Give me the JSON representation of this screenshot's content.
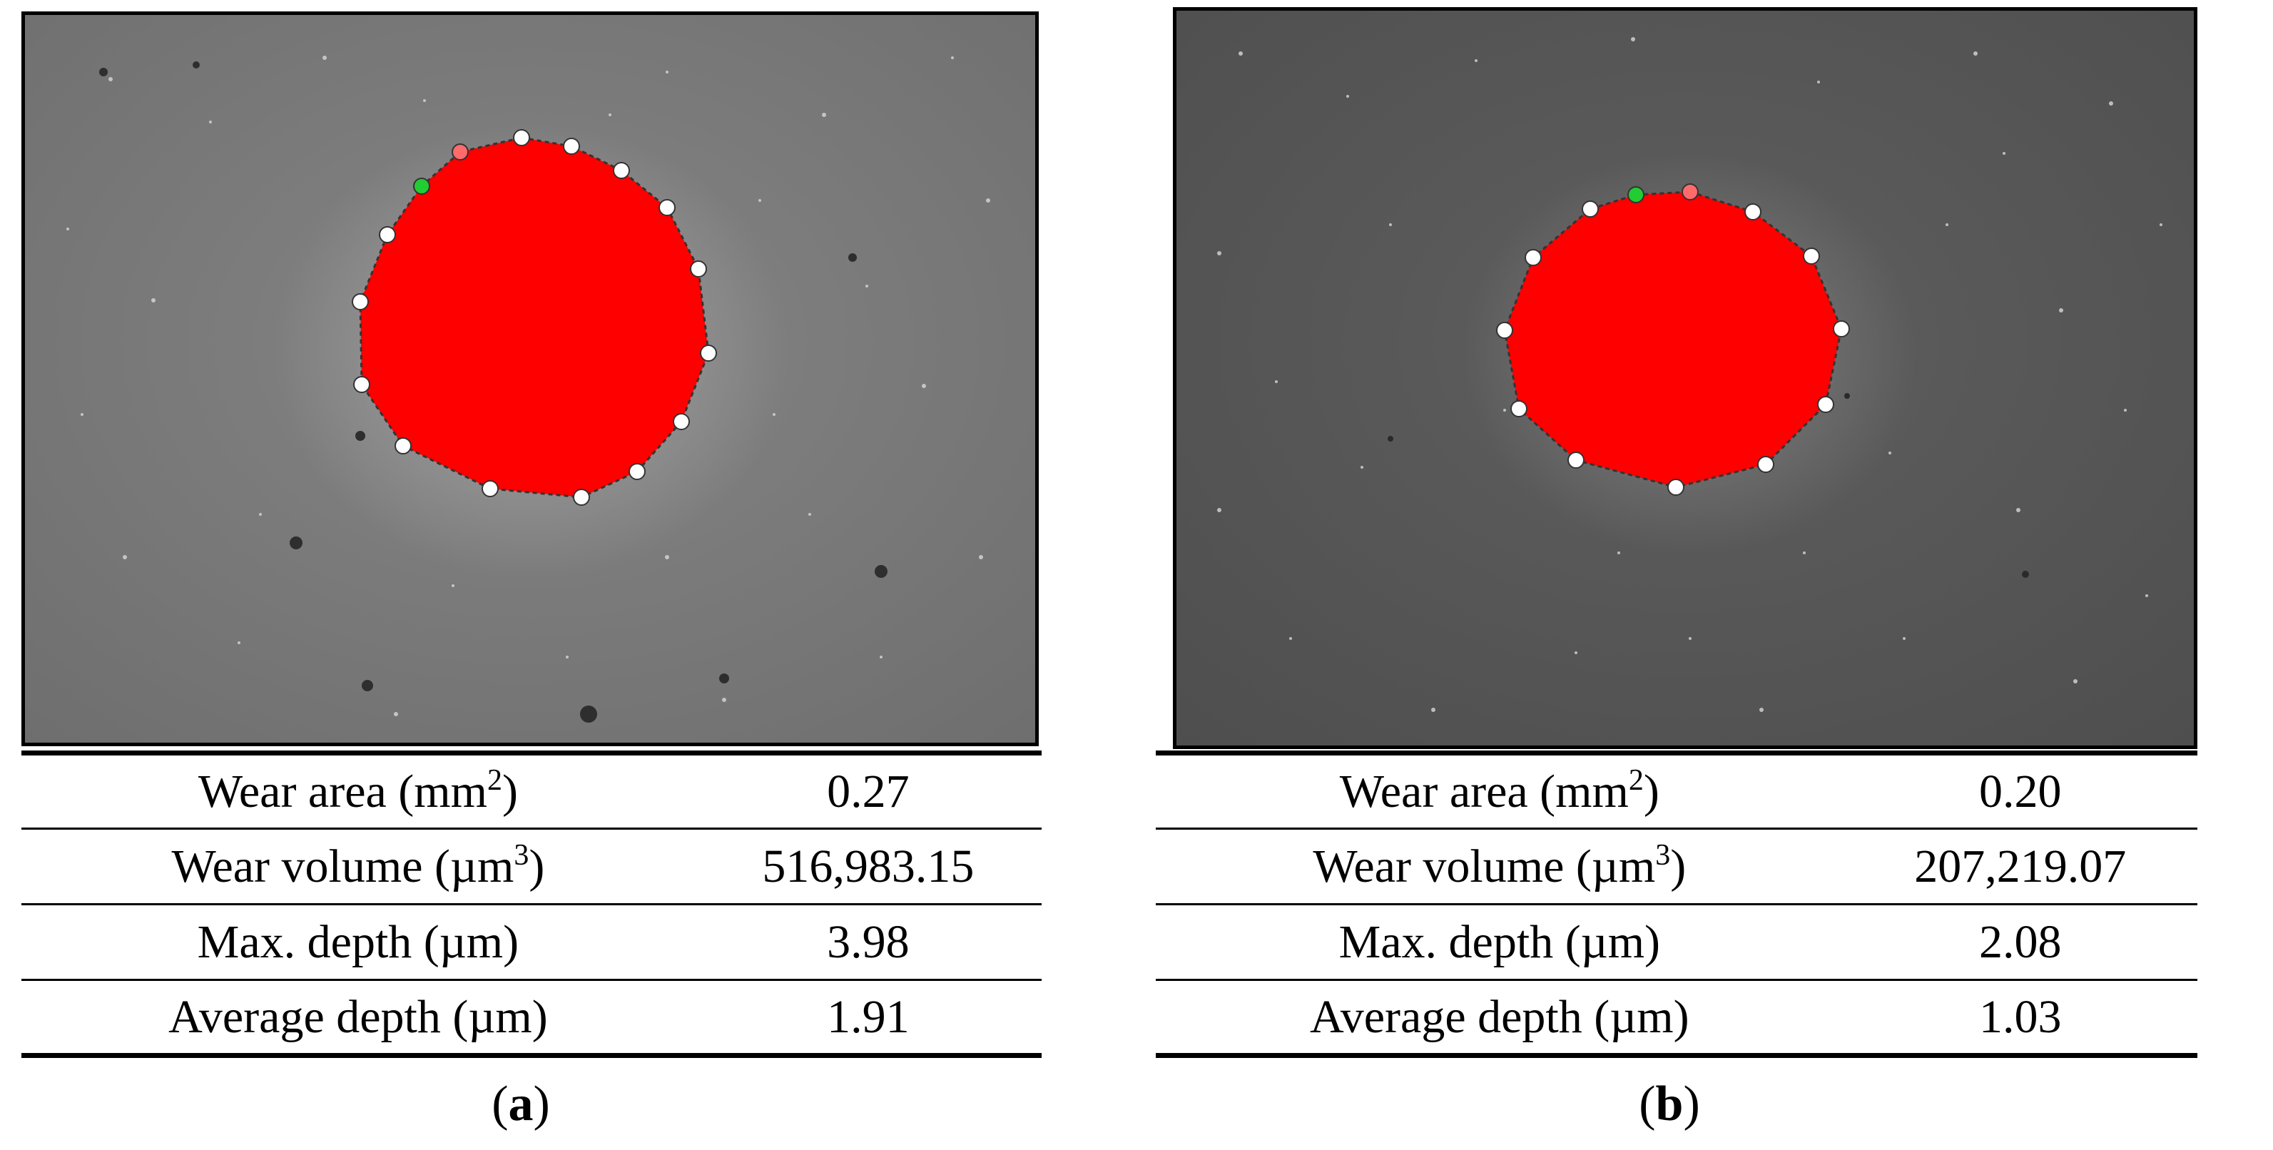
{
  "figure": {
    "panels": [
      {
        "id": "a",
        "caption_open": "(",
        "caption_letter": "a",
        "caption_close": ")",
        "rows": [
          {
            "label": "Wear area (mm",
            "sup": "2",
            "label_end": ")",
            "value": "0.27"
          },
          {
            "label": "Wear volume (µm",
            "sup": "3",
            "label_end": ")",
            "value": "516,983.15"
          },
          {
            "label": "Max. depth (µm)",
            "sup": "",
            "label_end": "",
            "value": "3.98"
          },
          {
            "label": "Average depth (µm)",
            "sup": "",
            "label_end": "",
            "value": "1.91"
          }
        ]
      },
      {
        "id": "b",
        "caption_open": "(",
        "caption_letter": "b",
        "caption_close": ")",
        "rows": [
          {
            "label": "Wear area (mm",
            "sup": "2",
            "label_end": ")",
            "value": "0.20"
          },
          {
            "label": "Wear volume (µm",
            "sup": "3",
            "label_end": ")",
            "value": "207,219.07"
          },
          {
            "label": "Max. depth (µm)",
            "sup": "",
            "label_end": "",
            "value": "2.08"
          },
          {
            "label": "Average depth (µm)",
            "sup": "",
            "label_end": "",
            "value": "1.03"
          }
        ]
      }
    ],
    "colors": {
      "background_a": "#7a7a7a",
      "background_b": "#5a5a5a",
      "wear_region": "#ff0000",
      "marker": "#ffffff",
      "marker_start": "#22cc33",
      "marker_end": "#ff6b6b"
    }
  }
}
